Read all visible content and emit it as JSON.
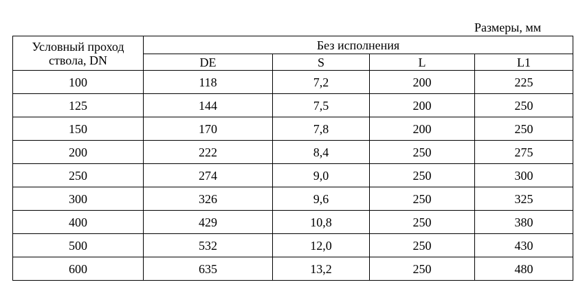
{
  "caption": "Размеры, мм",
  "table": {
    "header": {
      "dn": "Условный проход ствола, DN",
      "group": "Без исполнения",
      "columns": [
        "DE",
        "S",
        "L",
        "L1"
      ]
    },
    "rows": [
      [
        "100",
        "118",
        "7,2",
        "200",
        "225"
      ],
      [
        "125",
        "144",
        "7,5",
        "200",
        "250"
      ],
      [
        "150",
        "170",
        "7,8",
        "200",
        "250"
      ],
      [
        "200",
        "222",
        "8,4",
        "250",
        "275"
      ],
      [
        "250",
        "274",
        "9,0",
        "250",
        "300"
      ],
      [
        "300",
        "326",
        "9,6",
        "250",
        "325"
      ],
      [
        "400",
        "429",
        "10,8",
        "250",
        "380"
      ],
      [
        "500",
        "532",
        "12,0",
        "250",
        "430"
      ],
      [
        "600",
        "635",
        "13,2",
        "250",
        "480"
      ]
    ]
  }
}
